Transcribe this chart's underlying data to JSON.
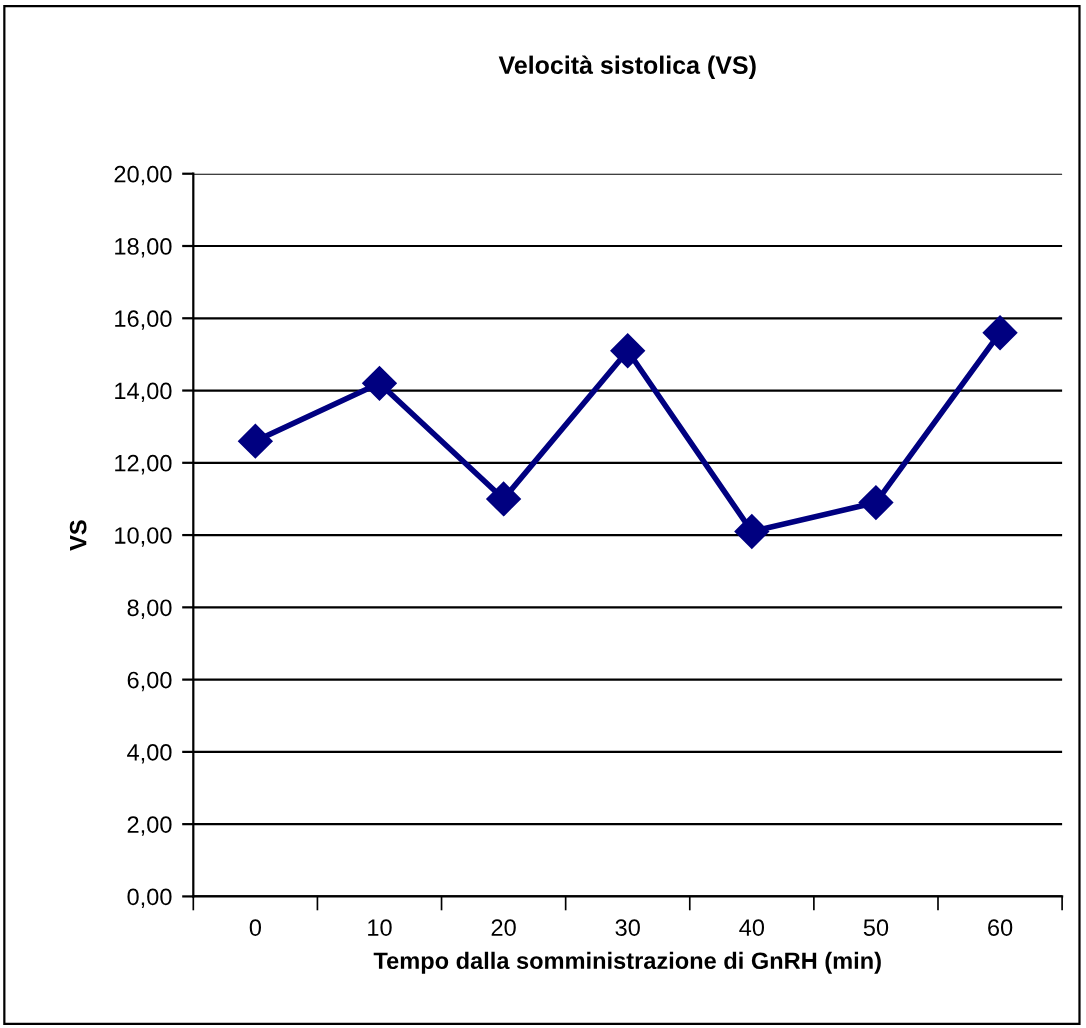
{
  "chart_data": {
    "type": "line",
    "title": "Velocità sistolica (VS)",
    "xlabel": "Tempo dalla somministrazione di GnRH (min)",
    "ylabel": "VS",
    "categories": [
      "0",
      "10",
      "20",
      "30",
      "40",
      "50",
      "60"
    ],
    "series": [
      {
        "color": "#000080",
        "values": [
          12.6,
          14.2,
          11.0,
          15.1,
          10.1,
          10.9,
          15.6
        ]
      }
    ],
    "ylim": [
      0,
      20
    ],
    "yticks": [
      {
        "value": 0,
        "label": "0,00"
      },
      {
        "value": 2,
        "label": "2,00"
      },
      {
        "value": 4,
        "label": "4,00"
      },
      {
        "value": 6,
        "label": "6,00"
      },
      {
        "value": 8,
        "label": "8,00"
      },
      {
        "value": 10,
        "label": "10,00"
      },
      {
        "value": 12,
        "label": "12,00"
      },
      {
        "value": 14,
        "label": "14,00"
      },
      {
        "value": 16,
        "label": "16,00"
      },
      {
        "value": 18,
        "label": "18,00"
      },
      {
        "value": 20,
        "label": "20,00"
      }
    ],
    "grid": "y",
    "legend": false,
    "marker": "diamond",
    "line_style": "solid"
  }
}
